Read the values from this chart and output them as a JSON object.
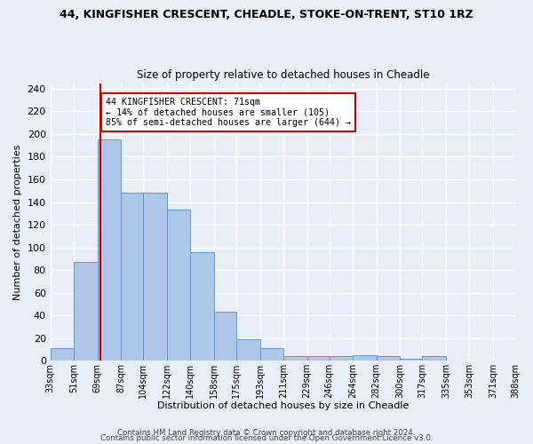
{
  "title": "44, KINGFISHER CRESCENT, CHEADLE, STOKE-ON-TRENT, ST10 1RZ",
  "subtitle": "Size of property relative to detached houses in Cheadle",
  "xlabel": "Distribution of detached houses by size in Cheadle",
  "ylabel": "Number of detached properties",
  "bin_labels": [
    "33sqm",
    "51sqm",
    "69sqm",
    "87sqm",
    "104sqm",
    "122sqm",
    "140sqm",
    "158sqm",
    "175sqm",
    "193sqm",
    "211sqm",
    "229sqm",
    "246sqm",
    "264sqm",
    "282sqm",
    "300sqm",
    "317sqm",
    "335sqm",
    "353sqm",
    "371sqm",
    "388sqm"
  ],
  "bar_color": "#aec6e8",
  "bar_edge_color": "#5b9bd5",
  "background_color": "#e8eef8",
  "grid_color": "#ffffff",
  "vline_x": 71,
  "annotation_text": "44 KINGFISHER CRESCENT: 71sqm\n← 14% of detached houses are smaller (105)\n85% of semi-detached houses are larger (644) →",
  "annotation_box_color": "#ffffff",
  "annotation_box_edge": "#cc0000",
  "vline_color": "#cc0000",
  "ylim": [
    0,
    245
  ],
  "yticks": [
    0,
    20,
    40,
    60,
    80,
    100,
    120,
    140,
    160,
    180,
    200,
    220,
    240
  ],
  "heights": [
    11,
    87,
    195,
    148,
    148,
    133,
    96,
    43,
    19,
    11,
    4,
    4,
    4,
    5,
    4,
    2,
    4,
    0,
    0,
    0
  ],
  "footer1": "Contains HM Land Registry data © Crown copyright and database right 2024.",
  "footer2": "Contains public sector information licensed under the Open Government Licence v3.0."
}
